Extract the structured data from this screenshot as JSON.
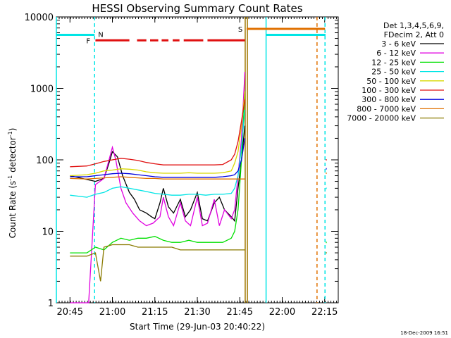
{
  "chart_data": {
    "type": "line",
    "title": "HESSI Observing Summary Count Rates",
    "xlabel": "Start Time (29-Jun-03 20:40:22)",
    "ylabel": "Count Rate (s⁻¹ detector⁻¹)",
    "ylabel_main": "Count Rate (s",
    "ylabel_sup1": "-1",
    "ylabel_mid": " detector",
    "ylabel_sup2": "-1",
    "ylabel_end": ")",
    "footer_date": "18-Dec-2009 16:51",
    "y_scale": "log",
    "ylim": [
      1,
      10000
    ],
    "xlim_minutes": [
      20.67,
      22.33
    ],
    "x_ticks": [
      {
        "label": "20:45",
        "t": 20.75
      },
      {
        "label": "21:00",
        "t": 21.0
      },
      {
        "label": "21:15",
        "t": 21.25
      },
      {
        "label": "21:30",
        "t": 21.5
      },
      {
        "label": "21:45",
        "t": 21.75
      },
      {
        "label": "22:00",
        "t": 22.0
      },
      {
        "label": "22:15",
        "t": 22.25
      }
    ],
    "y_ticks": [
      {
        "label": "1",
        "v": 1
      },
      {
        "label": "10",
        "v": 10
      },
      {
        "label": "100",
        "v": 100
      },
      {
        "label": "1000",
        "v": 1000
      },
      {
        "label": "10000",
        "v": 10000
      }
    ],
    "legend": {
      "header1": "Det 1,3,4,5,6,9,",
      "header2": "FDecim 2, Att 0",
      "placement": "right"
    },
    "flags": [
      {
        "label": "N",
        "color": "#00e5e5"
      },
      {
        "label": "F",
        "color": "#e01010"
      },
      {
        "label": "S",
        "color": "#e07000"
      }
    ],
    "series": [
      {
        "name": "3 - 6 keV",
        "color": "#000000",
        "x": [
          20.75,
          20.9,
          20.95,
          20.98,
          21.0,
          21.03,
          21.06,
          21.1,
          21.13,
          21.16,
          21.2,
          21.23,
          21.25,
          21.28,
          21.3,
          21.33,
          21.36,
          21.4,
          21.43,
          21.46,
          21.5,
          21.53,
          21.56,
          21.6,
          21.63,
          21.66,
          21.7,
          21.72,
          21.74,
          21.76,
          21.78
        ],
        "y": [
          60,
          50,
          55,
          90,
          130,
          110,
          60,
          35,
          28,
          20,
          18,
          16,
          15,
          25,
          40,
          22,
          18,
          28,
          16,
          20,
          35,
          15,
          14,
          25,
          30,
          20,
          16,
          14,
          40,
          100,
          300
        ]
      },
      {
        "name": "6 - 12 keV",
        "color": "#e000e0",
        "x": [
          20.75,
          20.86,
          20.9,
          20.95,
          20.98,
          21.0,
          21.02,
          21.05,
          21.08,
          21.12,
          21.16,
          21.2,
          21.24,
          21.28,
          21.3,
          21.33,
          21.36,
          21.4,
          21.43,
          21.46,
          21.5,
          21.53,
          21.56,
          21.6,
          21.63,
          21.66,
          21.7,
          21.72,
          21.74,
          21.76,
          21.78
        ],
        "y": [
          1,
          1,
          45,
          55,
          100,
          150,
          100,
          40,
          25,
          18,
          14,
          12,
          13,
          16,
          30,
          16,
          12,
          25,
          14,
          12,
          30,
          12,
          13,
          28,
          12,
          20,
          15,
          20,
          60,
          200,
          1700
        ]
      },
      {
        "name": "12 - 25 keV",
        "color": "#00e000",
        "x": [
          20.75,
          20.85,
          20.9,
          20.95,
          21.0,
          21.05,
          21.1,
          21.15,
          21.2,
          21.25,
          21.3,
          21.35,
          21.4,
          21.45,
          21.5,
          21.55,
          21.6,
          21.65,
          21.7,
          21.72,
          21.74,
          21.76,
          21.78
        ],
        "y": [
          5,
          5,
          6,
          5.5,
          7,
          8,
          7.5,
          8,
          8,
          8.5,
          7.5,
          7,
          7,
          7.5,
          7,
          7,
          7,
          7,
          8,
          10,
          20,
          100,
          900
        ]
      },
      {
        "name": "25 - 50 keV",
        "color": "#00e5e5",
        "x": [
          20.75,
          20.85,
          20.9,
          20.95,
          21.0,
          21.05,
          21.1,
          21.15,
          21.2,
          21.25,
          21.3,
          21.35,
          21.4,
          21.45,
          21.5,
          21.55,
          21.6,
          21.65,
          21.7,
          21.72,
          21.74,
          21.76,
          21.78
        ],
        "y": [
          32,
          30,
          33,
          35,
          40,
          42,
          40,
          38,
          36,
          34,
          33,
          32,
          32,
          33,
          33,
          32,
          33,
          33,
          34,
          40,
          60,
          150,
          500
        ]
      },
      {
        "name": "50 - 100 keV",
        "color": "#d8d800",
        "x": [
          20.75,
          20.85,
          20.9,
          20.95,
          21.0,
          21.05,
          21.1,
          21.15,
          21.2,
          21.25,
          21.3,
          21.35,
          21.4,
          21.45,
          21.5,
          21.55,
          21.6,
          21.65,
          21.7,
          21.72,
          21.74,
          21.76,
          21.78
        ],
        "y": [
          60,
          62,
          65,
          70,
          72,
          75,
          74,
          72,
          68,
          66,
          65,
          65,
          65,
          66,
          65,
          65,
          65,
          66,
          70,
          90,
          130,
          300,
          900
        ]
      },
      {
        "name": "100 - 300 keV",
        "color": "#e01010",
        "x": [
          20.75,
          20.85,
          20.9,
          20.95,
          21.0,
          21.05,
          21.1,
          21.15,
          21.2,
          21.25,
          21.3,
          21.35,
          21.4,
          21.45,
          21.5,
          21.55,
          21.6,
          21.65,
          21.7,
          21.72,
          21.74,
          21.76,
          21.78
        ],
        "y": [
          80,
          82,
          88,
          95,
          100,
          105,
          102,
          98,
          92,
          88,
          85,
          85,
          85,
          85,
          85,
          85,
          85,
          86,
          100,
          120,
          180,
          350,
          700
        ]
      },
      {
        "name": "300 - 800 keV",
        "color": "#0000e0",
        "x": [
          20.75,
          20.85,
          20.9,
          20.95,
          21.0,
          21.05,
          21.1,
          21.15,
          21.2,
          21.25,
          21.3,
          21.35,
          21.4,
          21.45,
          21.5,
          21.55,
          21.6,
          21.65,
          21.7,
          21.72,
          21.74,
          21.76,
          21.78
        ],
        "y": [
          58,
          58,
          60,
          62,
          64,
          65,
          64,
          62,
          60,
          58,
          57,
          57,
          57,
          57,
          57,
          57,
          57,
          58,
          60,
          62,
          70,
          100,
          200
        ]
      },
      {
        "name": "800 - 7000 keV",
        "color": "#e07000",
        "x": [
          20.75,
          20.85,
          20.9,
          20.95,
          21.0,
          21.05,
          21.1,
          21.15,
          21.2,
          21.25,
          21.3,
          21.35,
          21.4,
          21.45,
          21.5,
          21.55,
          21.6,
          21.65,
          21.7,
          21.72,
          21.74,
          21.76,
          21.78
        ],
        "y": [
          55,
          54,
          55,
          56,
          57,
          58,
          57,
          56,
          55,
          55,
          54,
          54,
          54,
          54,
          54,
          54,
          54,
          54,
          54,
          54,
          54,
          54,
          54
        ]
      },
      {
        "name": "7000 - 20000 keV",
        "color": "#8a7a00",
        "x": [
          20.75,
          20.85,
          20.9,
          20.93,
          20.95,
          21.0,
          21.05,
          21.1,
          21.15,
          21.2,
          21.25,
          21.3,
          21.35,
          21.4,
          21.45,
          21.5,
          21.55,
          21.6,
          21.65,
          21.7,
          21.72,
          21.74,
          21.76,
          21.78
        ],
        "y": [
          4.5,
          4.5,
          5,
          2,
          6,
          6.5,
          6.5,
          6.5,
          6,
          6,
          6,
          6,
          6,
          5.5,
          5.5,
          5.5,
          5.5,
          5.5,
          5.5,
          5.5,
          5.5,
          5.5,
          5.5,
          5.5
        ]
      }
    ]
  }
}
